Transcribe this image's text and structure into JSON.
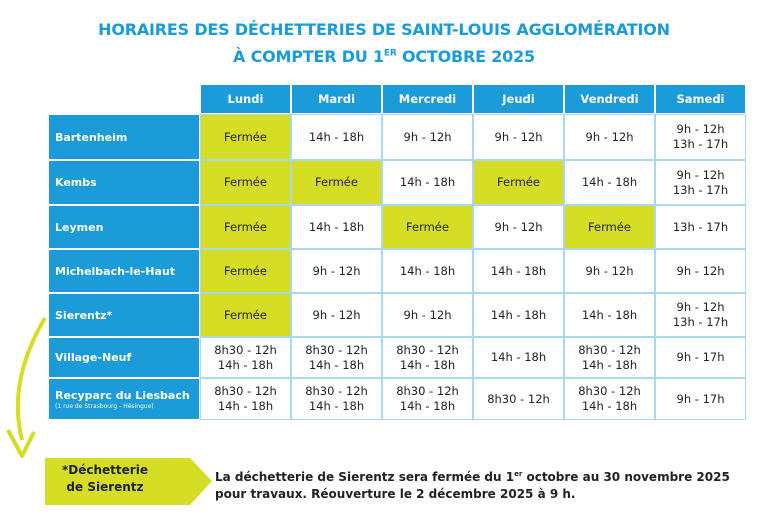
{
  "header": {
    "title_line1": "HORAIRES DES DÉCHETTERIES DE SAINT-LOUIS AGGLOMÉRATION",
    "title_line2": {
      "before": "À COMPTER DU 1",
      "sup": "ER",
      "after": " OCTOBRE 2025"
    }
  },
  "table": {
    "days": [
      "Lundi",
      "Mardi",
      "Mercredi",
      "Jeudi",
      "Vendredi",
      "Samedi"
    ],
    "rows": [
      {
        "name": "Bartenheim",
        "cells": [
          {
            "lines": [
              "Fermée"
            ],
            "highlight": true
          },
          {
            "lines": [
              "14h - 18h"
            ]
          },
          {
            "lines": [
              "9h - 12h"
            ]
          },
          {
            "lines": [
              "9h - 12h"
            ]
          },
          {
            "lines": [
              "9h - 12h"
            ]
          },
          {
            "lines": [
              "9h - 12h",
              "13h - 17h"
            ]
          }
        ]
      },
      {
        "name": "Kembs",
        "cells": [
          {
            "lines": [
              "Fermée"
            ],
            "highlight": true
          },
          {
            "lines": [
              "Fermée"
            ],
            "highlight": true
          },
          {
            "lines": [
              "14h - 18h"
            ]
          },
          {
            "lines": [
              "Fermée"
            ],
            "highlight": true
          },
          {
            "lines": [
              "14h - 18h"
            ]
          },
          {
            "lines": [
              "9h - 12h",
              "13h - 17h"
            ]
          }
        ]
      },
      {
        "name": "Leymen",
        "cells": [
          {
            "lines": [
              "Fermée"
            ],
            "highlight": true
          },
          {
            "lines": [
              "14h - 18h"
            ]
          },
          {
            "lines": [
              "Fermée"
            ],
            "highlight": true
          },
          {
            "lines": [
              "9h - 12h"
            ]
          },
          {
            "lines": [
              "Fermée"
            ],
            "highlight": true
          },
          {
            "lines": [
              "13h - 17h"
            ]
          }
        ]
      },
      {
        "name": "Michelbach-le-Haut",
        "cells": [
          {
            "lines": [
              "Fermée"
            ],
            "highlight": true
          },
          {
            "lines": [
              "9h - 12h"
            ]
          },
          {
            "lines": [
              "14h - 18h"
            ]
          },
          {
            "lines": [
              "14h - 18h"
            ]
          },
          {
            "lines": [
              "9h - 12h"
            ]
          },
          {
            "lines": [
              "9h - 12h"
            ]
          }
        ]
      },
      {
        "name": "Sierentz*",
        "cells": [
          {
            "lines": [
              "Fermée"
            ],
            "highlight": true
          },
          {
            "lines": [
              "9h - 12h"
            ]
          },
          {
            "lines": [
              "9h - 12h"
            ]
          },
          {
            "lines": [
              "14h - 18h"
            ]
          },
          {
            "lines": [
              "14h - 18h"
            ]
          },
          {
            "lines": [
              "9h - 12h",
              "13h - 17h"
            ]
          }
        ]
      },
      {
        "name": "Village-Neuf",
        "cells": [
          {
            "lines": [
              "8h30 - 12h",
              "14h - 18h"
            ]
          },
          {
            "lines": [
              "8h30 - 12h",
              "14h - 18h"
            ]
          },
          {
            "lines": [
              "8h30 - 12h",
              "14h - 18h"
            ]
          },
          {
            "lines": [
              "14h - 18h"
            ]
          },
          {
            "lines": [
              "8h30 - 12h",
              "14h - 18h"
            ]
          },
          {
            "lines": [
              "9h - 17h"
            ]
          }
        ]
      },
      {
        "name": "Recyparc du Liesbach",
        "sub": "(1 rue de Strasbourg - Hésingue)",
        "cells": [
          {
            "lines": [
              "8h30 - 12h",
              "14h - 18h"
            ]
          },
          {
            "lines": [
              "8h30 - 12h",
              "14h - 18h"
            ]
          },
          {
            "lines": [
              "8h30 - 12h",
              "14h - 18h"
            ]
          },
          {
            "lines": [
              "8h30 - 12h"
            ]
          },
          {
            "lines": [
              "8h30 - 12h",
              "14h - 18h"
            ]
          },
          {
            "lines": [
              "9h - 17h"
            ]
          }
        ]
      }
    ]
  },
  "footer": {
    "tag_lines": [
      "*Déchetterie",
      "de Sierentz"
    ],
    "note_line1": {
      "before": "La déchetterie de Sierentz sera fermée du 1",
      "sup": "er",
      "after": " octobre au 30 novembre 2025"
    },
    "note_line2": "pour travaux. Réouverture le 2 décembre 2025 à 9 h."
  }
}
